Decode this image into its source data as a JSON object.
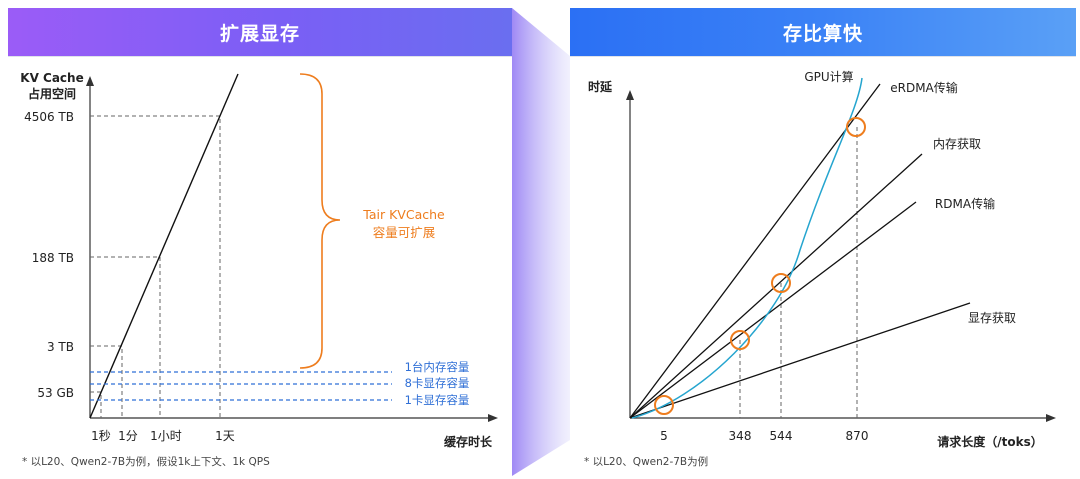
{
  "header": {
    "left_title": "扩展显存",
    "right_title": "存比算快"
  },
  "colors": {
    "orange": "#ee7d1e",
    "blue": "#2f6fd6",
    "teal": "#25a5cf",
    "axis": "#333333"
  },
  "chart_data": [
    {
      "type": "line",
      "title": "",
      "ylabel_lines": [
        "KV Cache",
        "占用空间"
      ],
      "xlabel": "缓存时长",
      "y_ticks": [
        "4506 TB",
        "188 TB",
        "3 TB",
        "53 GB"
      ],
      "x_ticks": [
        "1秒",
        "1分",
        "1小时",
        "1天"
      ],
      "series": [
        {
          "values": [
            "53 GB",
            "3 TB",
            "188 TB",
            "4506 TB"
          ]
        }
      ],
      "reference_lines": [
        {
          "label": "1台内存容量"
        },
        {
          "label": "8卡显存容量"
        },
        {
          "label": "1卡显存容量"
        }
      ],
      "brace_annotation": [
        "Tair KVCache",
        "容量可扩展"
      ],
      "footnote": "* 以L20、Qwen2-7B为例，假设1k上下文、1k QPS"
    },
    {
      "type": "line",
      "title": "",
      "ylabel": "时延",
      "xlabel": "请求长度（/toks）",
      "x_ticks": [
        5,
        348,
        544,
        870
      ],
      "series": [
        {
          "name": "GPU计算",
          "shape": "curve"
        },
        {
          "name": "eRDMA传输",
          "shape": "linear"
        },
        {
          "name": "内存获取",
          "shape": "linear"
        },
        {
          "name": "RDMA传输",
          "shape": "linear"
        },
        {
          "name": "显存获取",
          "shape": "linear"
        }
      ],
      "crossover_points": [
        5,
        348,
        544,
        870
      ],
      "footnote": "* 以L20、Qwen2-7B为例"
    }
  ]
}
